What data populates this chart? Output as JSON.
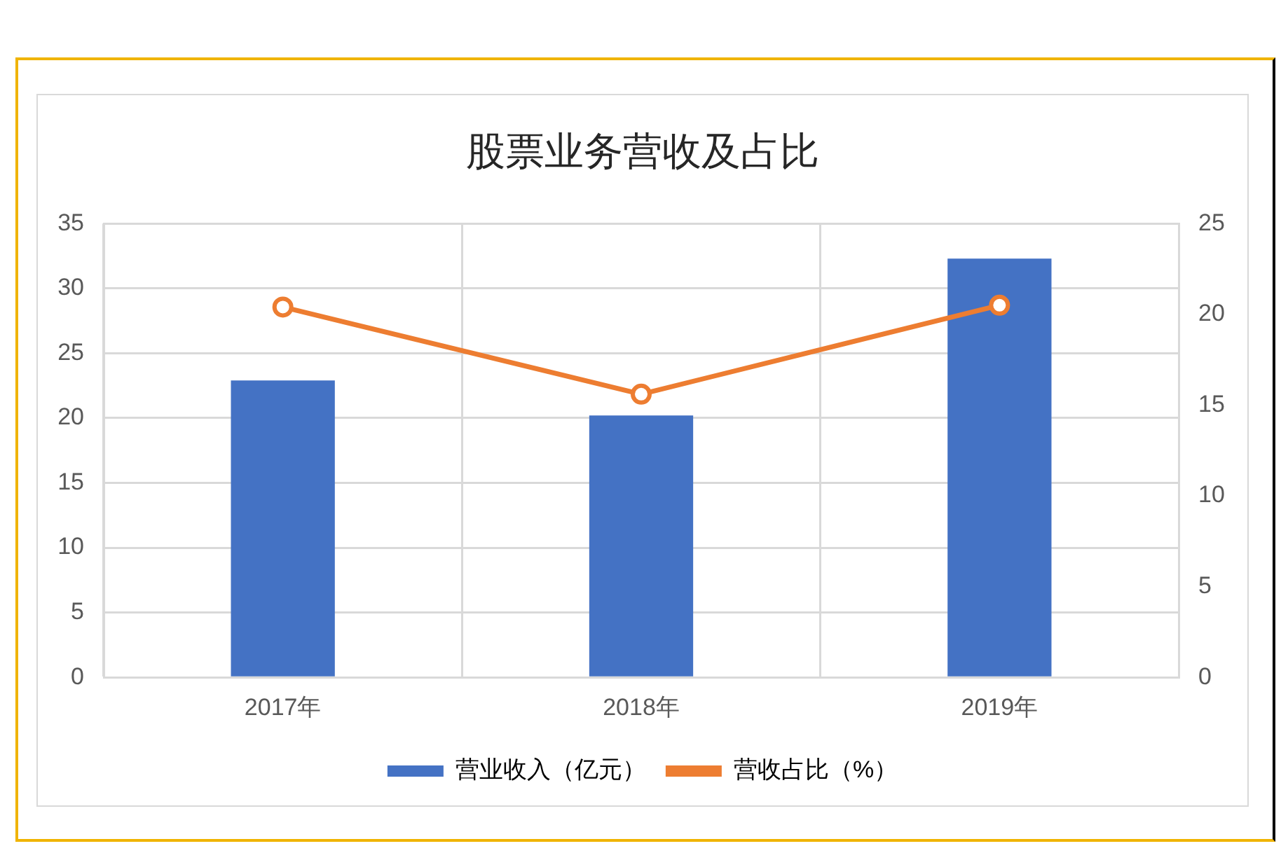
{
  "chart_data": {
    "type": "bar",
    "title": "股票业务营收及占比",
    "categories": [
      "2017年",
      "2018年",
      "2019年"
    ],
    "series": [
      {
        "name": "营业收入（亿元）",
        "color": "#4472c4",
        "values": [
          22.9,
          20.2,
          32.3
        ]
      },
      {
        "name": "营收占比（%）",
        "type": "line",
        "axis": "y2",
        "color": "#ed7d31",
        "values": [
          20.4,
          15.6,
          20.5
        ]
      }
    ],
    "ylim": [
      0,
      35
    ],
    "yticks": [
      0,
      5,
      10,
      15,
      20,
      25,
      30,
      35
    ],
    "y2lim": [
      0,
      25
    ],
    "y2ticks": [
      0,
      5,
      10,
      15,
      20,
      25
    ],
    "grid": true,
    "legend": "bottom",
    "marker": "circle"
  }
}
